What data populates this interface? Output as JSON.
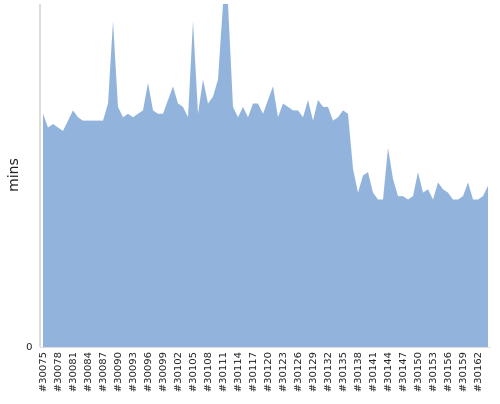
{
  "chart_data": {
    "type": "area",
    "y_label": "mins",
    "color": "#92b4dc",
    "categories": [
      "#30075",
      null,
      null,
      "#30078",
      null,
      null,
      "#30081",
      null,
      null,
      "#30084",
      null,
      null,
      "#30087",
      null,
      null,
      "#30090",
      null,
      null,
      "#30093",
      null,
      null,
      "#30096",
      null,
      null,
      "#30099",
      null,
      null,
      "#30102",
      null,
      null,
      "#30105",
      null,
      null,
      "#30108",
      null,
      null,
      "#30111",
      null,
      null,
      "#30114",
      null,
      null,
      "#30117",
      null,
      null,
      "#30120",
      null,
      null,
      "#30123",
      null,
      null,
      "#30126",
      null,
      null,
      "#30129",
      null,
      null,
      "#30132",
      null,
      null,
      "#30135",
      null,
      null,
      "#30138",
      null,
      null,
      "#30141",
      null,
      null,
      "#30144",
      null,
      null,
      "#30147",
      null,
      null,
      "#30150",
      null,
      null,
      "#30153",
      null,
      null,
      "#30156",
      null,
      null,
      "#30159",
      null,
      null,
      "#30162",
      null,
      null
    ],
    "values": [
      68,
      64,
      65,
      64,
      63,
      66,
      69,
      67,
      66,
      66,
      66,
      66,
      66,
      71,
      95,
      70,
      67,
      68,
      67,
      68,
      69,
      77,
      69,
      68,
      68,
      72,
      76,
      71,
      70,
      67,
      95,
      68,
      78,
      71,
      73,
      78,
      100,
      100,
      70,
      67,
      70,
      67,
      71,
      71,
      68,
      72,
      76,
      67,
      71,
      70,
      69,
      69,
      67,
      72,
      66,
      72,
      70,
      70,
      66,
      67,
      69,
      68,
      52,
      45,
      50,
      51,
      45,
      43,
      43,
      58,
      49,
      44,
      44,
      43,
      44,
      51,
      45,
      46,
      43,
      48,
      46,
      45,
      43,
      43,
      44,
      48,
      43,
      43,
      44,
      47
    ],
    "ylim": [
      0,
      100
    ],
    "yticks": [
      0
    ]
  }
}
